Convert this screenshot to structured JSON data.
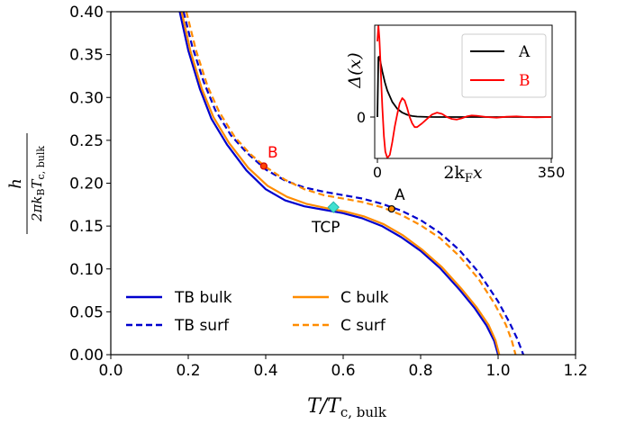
{
  "chart_data": [
    {
      "type": "line",
      "xlabel": "T/T",
      "xlabel_sub": "c, bulk",
      "ylabel_num": "h",
      "ylabel_den": "2πk",
      "ylabel_den_sub1": "B",
      "ylabel_den_mid": "T",
      "ylabel_den_sub2": "c, bulk",
      "xlim": [
        0.0,
        1.2
      ],
      "ylim": [
        0.0,
        0.4
      ],
      "xticks": [
        0.0,
        0.2,
        0.4,
        0.6,
        0.8,
        1.0,
        1.2
      ],
      "xtick_labels": [
        "0.0",
        "0.2",
        "0.4",
        "0.6",
        "0.8",
        "1.0",
        "1.2"
      ],
      "yticks": [
        0.0,
        0.05,
        0.1,
        0.15,
        0.2,
        0.25,
        0.3,
        0.35,
        0.4
      ],
      "ytick_labels": [
        "0.00",
        "0.05",
        "0.10",
        "0.15",
        "0.20",
        "0.25",
        "0.30",
        "0.35",
        "0.40"
      ],
      "grid": false,
      "legend_position": "bottom-left",
      "series": [
        {
          "name": "TB bulk",
          "color": "#0000cd",
          "style": "solid",
          "x": [
            0.178,
            0.2,
            0.23,
            0.26,
            0.3,
            0.35,
            0.4,
            0.45,
            0.5,
            0.55,
            0.6,
            0.65,
            0.7,
            0.75,
            0.8,
            0.85,
            0.9,
            0.94,
            0.97,
            0.99,
            1.0
          ],
          "y": [
            0.4,
            0.355,
            0.31,
            0.275,
            0.245,
            0.215,
            0.193,
            0.18,
            0.173,
            0.169,
            0.165,
            0.159,
            0.15,
            0.137,
            0.121,
            0.101,
            0.076,
            0.054,
            0.034,
            0.016,
            0.0
          ]
        },
        {
          "name": "TB surf",
          "color": "#0000cd",
          "style": "dashed",
          "x": [
            0.188,
            0.21,
            0.24,
            0.27,
            0.31,
            0.35,
            0.4,
            0.45,
            0.5,
            0.55,
            0.6,
            0.65,
            0.7,
            0.75,
            0.8,
            0.85,
            0.9,
            0.95,
            1.0,
            1.03,
            1.05,
            1.065
          ],
          "y": [
            0.4,
            0.36,
            0.318,
            0.285,
            0.256,
            0.236,
            0.216,
            0.203,
            0.195,
            0.19,
            0.186,
            0.182,
            0.176,
            0.168,
            0.157,
            0.142,
            0.122,
            0.096,
            0.062,
            0.037,
            0.018,
            0.0
          ]
        },
        {
          "name": "C bulk",
          "color": "#ff8c00",
          "style": "solid",
          "x": [
            0.183,
            0.205,
            0.235,
            0.265,
            0.305,
            0.355,
            0.405,
            0.455,
            0.505,
            0.555,
            0.605,
            0.655,
            0.705,
            0.755,
            0.805,
            0.855,
            0.905,
            0.945,
            0.975,
            0.993,
            1.003
          ],
          "y": [
            0.4,
            0.355,
            0.31,
            0.277,
            0.247,
            0.218,
            0.197,
            0.184,
            0.176,
            0.171,
            0.167,
            0.161,
            0.152,
            0.139,
            0.122,
            0.102,
            0.077,
            0.055,
            0.035,
            0.017,
            0.0
          ]
        },
        {
          "name": "C surf",
          "color": "#ff8c00",
          "style": "dashed",
          "x": [
            0.195,
            0.22,
            0.25,
            0.28,
            0.32,
            0.36,
            0.4,
            0.45,
            0.5,
            0.55,
            0.6,
            0.65,
            0.7,
            0.75,
            0.8,
            0.85,
            0.9,
            0.95,
            0.99,
            1.02,
            1.035,
            1.045
          ],
          "y": [
            0.4,
            0.355,
            0.313,
            0.283,
            0.254,
            0.234,
            0.219,
            0.204,
            0.193,
            0.186,
            0.182,
            0.178,
            0.172,
            0.163,
            0.151,
            0.136,
            0.115,
            0.088,
            0.06,
            0.035,
            0.017,
            0.0
          ]
        }
      ],
      "points": [
        {
          "label": "B",
          "x": 0.395,
          "y": 0.22,
          "fill": "#ff4500",
          "edge": "#cc0000",
          "label_color": "#ff0000"
        },
        {
          "label": "A",
          "x": 0.725,
          "y": 0.17,
          "fill": "#ff8c00",
          "edge": "#000000",
          "label_color": "#000000"
        },
        {
          "label": "TCP",
          "x": 0.575,
          "y": 0.172,
          "fill": "#40e0d0",
          "edge": "#20b2aa",
          "label_color": "#000000",
          "marker": "diamond"
        }
      ]
    },
    {
      "type": "line",
      "title": "inset",
      "xlabel": "2k",
      "xlabel_sub": "F",
      "xlabel_tail": "x",
      "ylabel": "Δ(x)",
      "xlim": [
        0,
        350
      ],
      "xtick_labels": [
        "0",
        "350"
      ],
      "ytick_labels": [
        "0"
      ],
      "legend_position": "top-right",
      "series": [
        {
          "name": "A",
          "color": "#000000",
          "x": [
            0,
            2,
            4,
            6,
            10,
            15,
            20,
            30,
            40,
            50,
            60,
            70,
            80,
            100,
            120,
            150,
            200,
            250,
            300,
            350
          ],
          "y": [
            0,
            0.95,
            0.96,
            0.88,
            0.72,
            0.55,
            0.42,
            0.24,
            0.13,
            0.07,
            0.035,
            0.015,
            0.007,
            0.002,
            0.0,
            0.0,
            0.0,
            0.0,
            0.0,
            0.0
          ]
        },
        {
          "name": "B",
          "color": "#ff0000",
          "x": [
            0,
            2,
            4,
            6,
            8,
            10,
            13,
            16,
            20,
            25,
            30,
            35,
            40,
            45,
            50,
            55,
            60,
            65,
            70,
            75,
            80,
            90,
            100,
            110,
            120,
            130,
            140,
            150,
            160,
            170,
            180,
            190,
            200,
            220,
            240,
            260,
            280,
            300,
            320,
            350
          ],
          "y": [
            1.2,
            1.45,
            1.25,
            0.9,
            0.5,
            0.15,
            -0.3,
            -0.55,
            -0.65,
            -0.6,
            -0.4,
            -0.15,
            0.05,
            0.22,
            0.3,
            0.26,
            0.14,
            0.0,
            -0.1,
            -0.16,
            -0.16,
            -0.1,
            -0.03,
            0.04,
            0.07,
            0.05,
            0.0,
            -0.03,
            -0.04,
            -0.02,
            0.01,
            0.025,
            0.02,
            0.0,
            -0.01,
            0.005,
            0.01,
            0.0,
            -0.005,
            0.0
          ]
        }
      ]
    }
  ],
  "annotations": {
    "B": "B",
    "A": "A",
    "TCP": "TCP"
  }
}
